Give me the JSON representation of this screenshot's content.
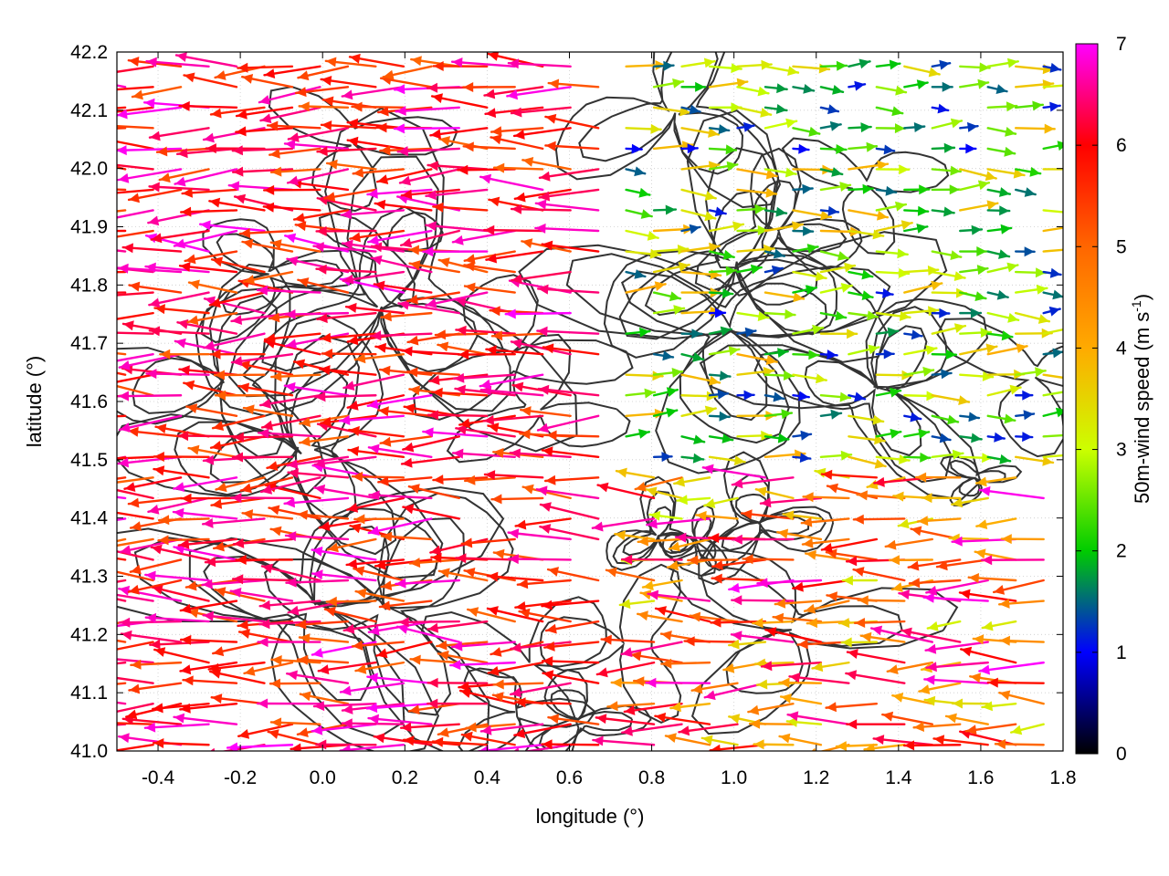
{
  "chart_data": {
    "type": "vector_field",
    "xlabel": "longitude (°)",
    "ylabel": "latitude (°)",
    "xlim": [
      -0.5,
      1.8
    ],
    "ylim": [
      41.0,
      42.2
    ],
    "xticks": [
      "-0.4",
      "-0.2",
      "0.0",
      "0.2",
      "0.4",
      "0.6",
      "0.8",
      "1.0",
      "1.2",
      "1.4",
      "1.6",
      "1.8"
    ],
    "xtick_values": [
      -0.4,
      -0.2,
      0.0,
      0.2,
      0.4,
      0.6,
      0.8,
      1.0,
      1.2,
      1.4,
      1.6,
      1.8
    ],
    "yticks": [
      "41.0",
      "41.1",
      "41.2",
      "41.3",
      "41.4",
      "41.5",
      "41.6",
      "41.7",
      "41.8",
      "41.9",
      "42.0",
      "42.1",
      "42.2"
    ],
    "ytick_values": [
      41.0,
      41.1,
      41.2,
      41.3,
      41.4,
      41.5,
      41.6,
      41.7,
      41.8,
      41.9,
      42.0,
      42.1,
      42.2
    ],
    "colorbar": {
      "label_main": "50m-wind speed (m s",
      "label_sup": "-1",
      "label_end": ")",
      "range": [
        0,
        7
      ],
      "ticks": [
        "0",
        "1",
        "2",
        "3",
        "4",
        "5",
        "6",
        "7"
      ],
      "tick_values": [
        0,
        1,
        2,
        3,
        4,
        5,
        6,
        7
      ],
      "palette": [
        {
          "v": 0.0,
          "c": "#000000"
        },
        {
          "v": 1.0,
          "c": "#0000ff"
        },
        {
          "v": 2.0,
          "c": "#00cc00"
        },
        {
          "v": 3.0,
          "c": "#ccff00"
        },
        {
          "v": 4.0,
          "c": "#ffaa00"
        },
        {
          "v": 5.0,
          "c": "#ff6600"
        },
        {
          "v": 6.0,
          "c": "#ff0000"
        },
        {
          "v": 7.0,
          "c": "#ff00ff"
        }
      ]
    },
    "grid": true,
    "contour_color": "#333333",
    "wind_regimes": [
      {
        "region": "west",
        "lon": [
          -0.5,
          0.7
        ],
        "lat": [
          41.0,
          42.2
        ],
        "direction": "westward",
        "speed": [
          5,
          7
        ]
      },
      {
        "region": "central-east",
        "lon": [
          0.7,
          1.8
        ],
        "lat": [
          41.5,
          42.2
        ],
        "direction": "eastward",
        "speed": [
          1,
          4
        ]
      },
      {
        "region": "southeast",
        "lon": [
          0.8,
          1.8
        ],
        "lat": [
          41.0,
          41.5
        ],
        "direction": "westward",
        "speed": [
          3,
          7
        ]
      }
    ]
  }
}
